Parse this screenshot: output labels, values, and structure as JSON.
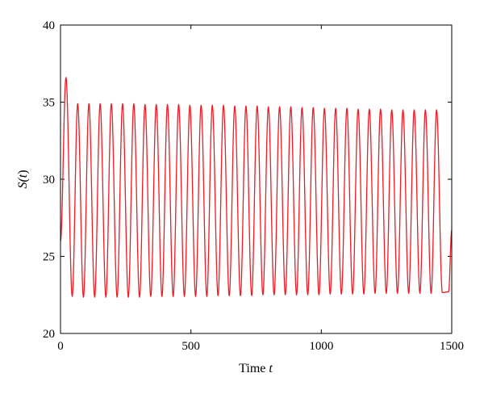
{
  "chart_data": {
    "type": "line",
    "xlabel": "Time t",
    "xlabel_parts": {
      "text": "Time ",
      "var": "t"
    },
    "ylabel": "S(t)",
    "ylabel_parts": {
      "pre": "S(",
      "var": "t",
      "post": ")"
    },
    "xlim": [
      0,
      1500
    ],
    "ylim": [
      20,
      40
    ],
    "xticks": [
      0,
      500,
      1000,
      1500
    ],
    "yticks": [
      20,
      25,
      30,
      35,
      40
    ],
    "grid": false,
    "legend": "none",
    "series": [
      {
        "color": "#ee1c25",
        "initial": {
          "x": 0,
          "y": 26.0
        },
        "peaks": [
          [
            21,
            36.6
          ],
          [
            66,
            34.9
          ],
          [
            109,
            34.9
          ],
          [
            152,
            34.9
          ],
          [
            195,
            34.9
          ],
          [
            238,
            34.9
          ],
          [
            281,
            34.9
          ],
          [
            324,
            34.85
          ],
          [
            367,
            34.85
          ],
          [
            410,
            34.85
          ],
          [
            453,
            34.85
          ],
          [
            496,
            34.8
          ],
          [
            539,
            34.8
          ],
          [
            582,
            34.8
          ],
          [
            625,
            34.8
          ],
          [
            668,
            34.75
          ],
          [
            711,
            34.75
          ],
          [
            754,
            34.75
          ],
          [
            797,
            34.7
          ],
          [
            840,
            34.7
          ],
          [
            883,
            34.7
          ],
          [
            926,
            34.65
          ],
          [
            969,
            34.65
          ],
          [
            1012,
            34.6
          ],
          [
            1055,
            34.6
          ],
          [
            1098,
            34.6
          ],
          [
            1141,
            34.55
          ],
          [
            1184,
            34.55
          ],
          [
            1227,
            34.55
          ],
          [
            1270,
            34.5
          ],
          [
            1313,
            34.5
          ],
          [
            1356,
            34.5
          ],
          [
            1399,
            34.5
          ],
          [
            1442,
            34.5
          ]
        ],
        "troughs": [
          [
            45,
            22.4
          ],
          [
            88,
            22.35
          ],
          [
            131,
            22.35
          ],
          [
            174,
            22.35
          ],
          [
            217,
            22.35
          ],
          [
            260,
            22.35
          ],
          [
            303,
            22.35
          ],
          [
            346,
            22.4
          ],
          [
            389,
            22.4
          ],
          [
            432,
            22.4
          ],
          [
            475,
            22.4
          ],
          [
            518,
            22.4
          ],
          [
            561,
            22.4
          ],
          [
            604,
            22.45
          ],
          [
            647,
            22.45
          ],
          [
            690,
            22.45
          ],
          [
            733,
            22.45
          ],
          [
            776,
            22.5
          ],
          [
            819,
            22.5
          ],
          [
            862,
            22.5
          ],
          [
            905,
            22.5
          ],
          [
            948,
            22.5
          ],
          [
            991,
            22.5
          ],
          [
            1034,
            22.55
          ],
          [
            1077,
            22.55
          ],
          [
            1120,
            22.55
          ],
          [
            1163,
            22.55
          ],
          [
            1206,
            22.6
          ],
          [
            1249,
            22.6
          ],
          [
            1292,
            22.6
          ],
          [
            1335,
            22.6
          ],
          [
            1378,
            22.6
          ],
          [
            1421,
            22.6
          ],
          [
            1464,
            22.65
          ],
          [
            1488,
            22.7
          ]
        ],
        "end": {
          "x": 1500,
          "y": 26.7
        }
      }
    ]
  }
}
